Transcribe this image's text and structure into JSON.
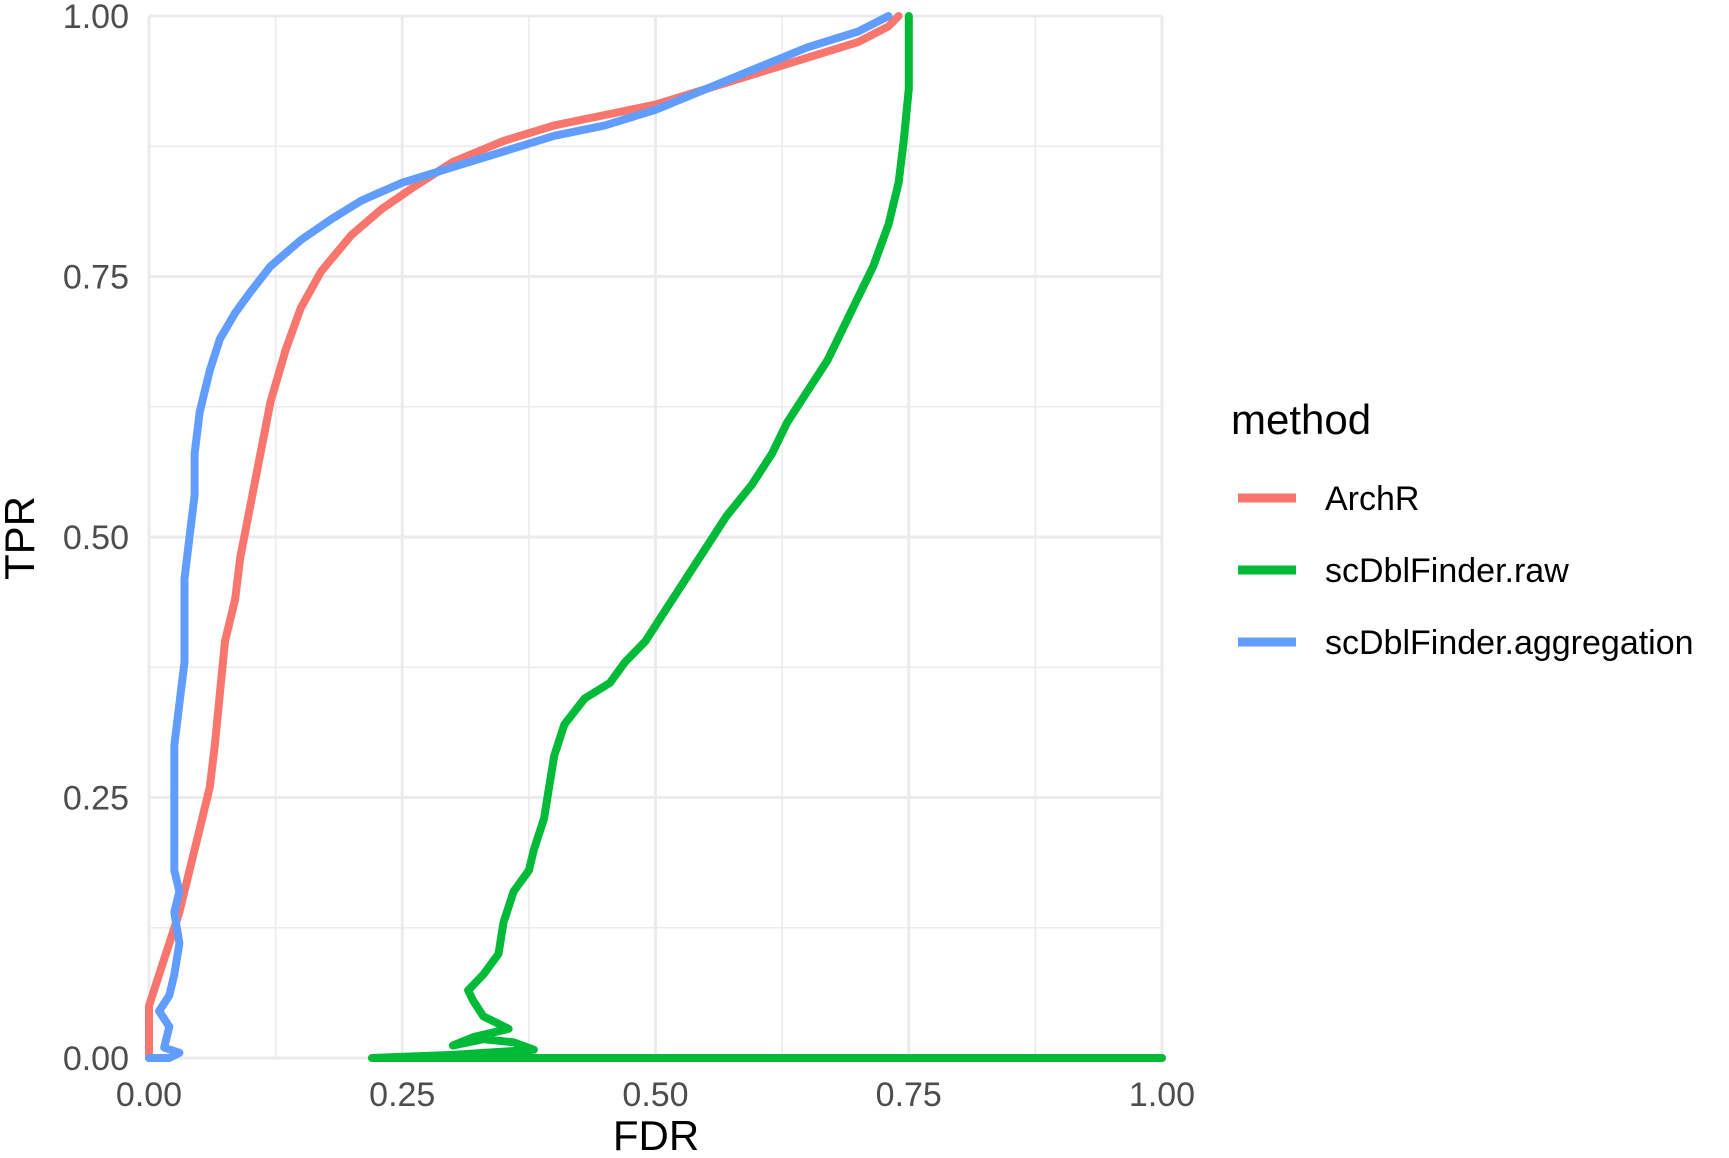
{
  "chart_data": {
    "type": "line",
    "title": "",
    "xlabel": "FDR",
    "ylabel": "TPR",
    "xlim": [
      0,
      1
    ],
    "ylim": [
      0,
      1
    ],
    "xticks": [
      "0.00",
      "0.25",
      "0.50",
      "0.75",
      "1.00"
    ],
    "yticks": [
      "0.00",
      "0.25",
      "0.50",
      "0.75",
      "1.00"
    ],
    "grid": true,
    "legend": {
      "title": "method",
      "position": "right"
    },
    "series": [
      {
        "name": "ArchR",
        "color": "#F8766D",
        "points": [
          [
            0.0,
            0.0
          ],
          [
            0.0,
            0.05
          ],
          [
            0.01,
            0.08
          ],
          [
            0.02,
            0.11
          ],
          [
            0.03,
            0.14
          ],
          [
            0.04,
            0.18
          ],
          [
            0.05,
            0.22
          ],
          [
            0.06,
            0.26
          ],
          [
            0.065,
            0.3
          ],
          [
            0.07,
            0.35
          ],
          [
            0.075,
            0.4
          ],
          [
            0.085,
            0.44
          ],
          [
            0.09,
            0.48
          ],
          [
            0.1,
            0.53
          ],
          [
            0.11,
            0.58
          ],
          [
            0.12,
            0.63
          ],
          [
            0.135,
            0.68
          ],
          [
            0.15,
            0.72
          ],
          [
            0.17,
            0.755
          ],
          [
            0.2,
            0.79
          ],
          [
            0.23,
            0.815
          ],
          [
            0.26,
            0.835
          ],
          [
            0.3,
            0.86
          ],
          [
            0.35,
            0.88
          ],
          [
            0.4,
            0.895
          ],
          [
            0.45,
            0.905
          ],
          [
            0.5,
            0.915
          ],
          [
            0.55,
            0.93
          ],
          [
            0.6,
            0.945
          ],
          [
            0.65,
            0.96
          ],
          [
            0.7,
            0.975
          ],
          [
            0.73,
            0.99
          ],
          [
            0.74,
            1.0
          ]
        ]
      },
      {
        "name": "scDblFinder.raw",
        "color": "#00BA38",
        "points": [
          [
            1.0,
            0.0
          ],
          [
            0.6,
            0.0
          ],
          [
            0.22,
            0.0
          ],
          [
            0.3,
            0.003
          ],
          [
            0.38,
            0.008
          ],
          [
            0.36,
            0.015
          ],
          [
            0.33,
            0.018
          ],
          [
            0.3,
            0.012
          ],
          [
            0.32,
            0.02
          ],
          [
            0.355,
            0.028
          ],
          [
            0.33,
            0.04
          ],
          [
            0.32,
            0.055
          ],
          [
            0.315,
            0.065
          ],
          [
            0.33,
            0.08
          ],
          [
            0.345,
            0.1
          ],
          [
            0.35,
            0.13
          ],
          [
            0.36,
            0.16
          ],
          [
            0.375,
            0.18
          ],
          [
            0.38,
            0.2
          ],
          [
            0.39,
            0.23
          ],
          [
            0.395,
            0.26
          ],
          [
            0.4,
            0.29
          ],
          [
            0.41,
            0.32
          ],
          [
            0.43,
            0.345
          ],
          [
            0.455,
            0.36
          ],
          [
            0.47,
            0.38
          ],
          [
            0.49,
            0.4
          ],
          [
            0.51,
            0.43
          ],
          [
            0.53,
            0.46
          ],
          [
            0.55,
            0.49
          ],
          [
            0.57,
            0.52
          ],
          [
            0.595,
            0.55
          ],
          [
            0.615,
            0.58
          ],
          [
            0.63,
            0.61
          ],
          [
            0.65,
            0.64
          ],
          [
            0.67,
            0.67
          ],
          [
            0.685,
            0.7
          ],
          [
            0.7,
            0.73
          ],
          [
            0.715,
            0.76
          ],
          [
            0.73,
            0.8
          ],
          [
            0.74,
            0.84
          ],
          [
            0.745,
            0.88
          ],
          [
            0.75,
            0.93
          ],
          [
            0.75,
            0.97
          ],
          [
            0.75,
            1.0
          ]
        ]
      },
      {
        "name": "scDblFinder.aggregation",
        "color": "#619CFF",
        "points": [
          [
            0.0,
            0.0
          ],
          [
            0.02,
            0.0
          ],
          [
            0.03,
            0.005
          ],
          [
            0.015,
            0.01
          ],
          [
            0.02,
            0.03
          ],
          [
            0.01,
            0.045
          ],
          [
            0.02,
            0.06
          ],
          [
            0.025,
            0.08
          ],
          [
            0.03,
            0.11
          ],
          [
            0.025,
            0.14
          ],
          [
            0.03,
            0.16
          ],
          [
            0.025,
            0.18
          ],
          [
            0.025,
            0.22
          ],
          [
            0.025,
            0.26
          ],
          [
            0.025,
            0.3
          ],
          [
            0.03,
            0.34
          ],
          [
            0.035,
            0.38
          ],
          [
            0.035,
            0.42
          ],
          [
            0.035,
            0.46
          ],
          [
            0.04,
            0.5
          ],
          [
            0.045,
            0.54
          ],
          [
            0.045,
            0.58
          ],
          [
            0.05,
            0.62
          ],
          [
            0.06,
            0.66
          ],
          [
            0.07,
            0.69
          ],
          [
            0.085,
            0.715
          ],
          [
            0.1,
            0.735
          ],
          [
            0.12,
            0.76
          ],
          [
            0.15,
            0.785
          ],
          [
            0.18,
            0.805
          ],
          [
            0.21,
            0.823
          ],
          [
            0.25,
            0.84
          ],
          [
            0.3,
            0.855
          ],
          [
            0.35,
            0.87
          ],
          [
            0.4,
            0.885
          ],
          [
            0.45,
            0.895
          ],
          [
            0.5,
            0.91
          ],
          [
            0.55,
            0.93
          ],
          [
            0.6,
            0.95
          ],
          [
            0.65,
            0.97
          ],
          [
            0.7,
            0.985
          ],
          [
            0.72,
            0.995
          ],
          [
            0.73,
            1.0
          ]
        ]
      }
    ]
  }
}
